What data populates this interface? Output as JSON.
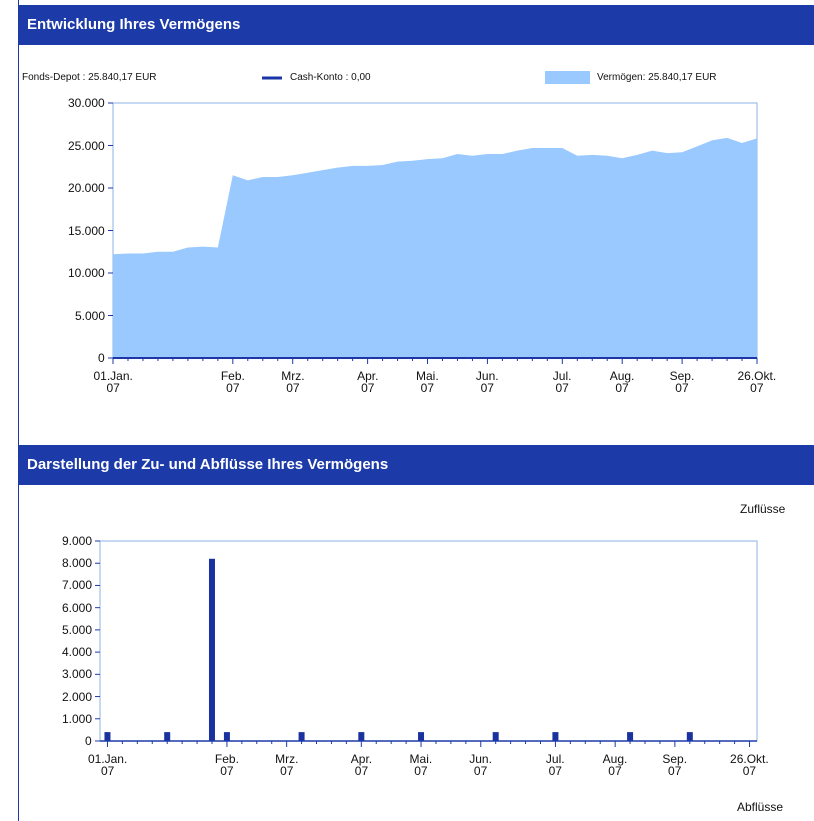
{
  "chart_data": [
    {
      "type": "area",
      "title": "Entwicklung Ihres Vermögens",
      "legend_text": "Fonds-Depot : 25.840,17 EUR",
      "categories": [
        "01.Jan.\n07",
        null,
        null,
        null,
        null,
        null,
        null,
        null,
        "Feb.\n07",
        null,
        null,
        null,
        "Mrz.\n07",
        null,
        null,
        null,
        null,
        "Apr.\n07",
        null,
        null,
        null,
        "Mai.\n07",
        null,
        null,
        null,
        "Jun.\n07",
        null,
        null,
        null,
        null,
        "Jul.\n07",
        null,
        null,
        null,
        "Aug.\n07",
        null,
        null,
        null,
        "Sep.\n07",
        null,
        null,
        null,
        null,
        "26.Okt.\n07"
      ],
      "series": [
        {
          "name": "Cash-Konto : 0,00",
          "type": "line",
          "color": "#1a35a8",
          "values": [
            0,
            0,
            0,
            0,
            0,
            0,
            0,
            0,
            0,
            0,
            0,
            0,
            0,
            0,
            0,
            0,
            0,
            0,
            0,
            0,
            0,
            0,
            0,
            0,
            0,
            0,
            0,
            0,
            0,
            0,
            0,
            0,
            0,
            0,
            0,
            0,
            0,
            0,
            0,
            0,
            0,
            0,
            0,
            0
          ]
        },
        {
          "name": "Vermögen: 25.840,17 EUR",
          "type": "area",
          "color": "#99c9ff",
          "values": [
            12200,
            12300,
            12300,
            12500,
            12500,
            13000,
            13100,
            13000,
            21500,
            20900,
            21300,
            21300,
            21500,
            21800,
            22100,
            22400,
            22600,
            22600,
            22700,
            23100,
            23200,
            23400,
            23500,
            24000,
            23800,
            24000,
            24000,
            24400,
            24700,
            24700,
            24700,
            23800,
            23900,
            23800,
            23500,
            23900,
            24400,
            24100,
            24200,
            24900,
            25600,
            25900,
            25300,
            25840
          ]
        }
      ],
      "ylim": [
        0,
        30000
      ],
      "yticks": [
        0,
        {
          "value": 5000,
          "label": "5.000"
        },
        {
          "value": 10000,
          "label": "10.000"
        },
        {
          "value": 15000,
          "label": "15.000"
        },
        {
          "value": 20000,
          "label": "20.000"
        },
        {
          "value": 25000,
          "label": "25.000"
        },
        {
          "value": 30000,
          "label": "30.000"
        }
      ]
    },
    {
      "type": "bar",
      "title": "Darstellung der Zu- und Abflüsse Ihres Vermögens",
      "top_label": "Zuflüsse",
      "bottom_label": "Abflüsse",
      "color": "#1a32a0",
      "categories": [
        "01.Jan.\n07",
        null,
        null,
        null,
        null,
        null,
        null,
        null,
        "Feb.\n07",
        null,
        null,
        null,
        "Mrz.\n07",
        null,
        null,
        null,
        null,
        "Apr.\n07",
        null,
        null,
        null,
        "Mai.\n07",
        null,
        null,
        null,
        "Jun.\n07",
        null,
        null,
        null,
        null,
        "Jul.\n07",
        null,
        null,
        null,
        "Aug.\n07",
        null,
        null,
        null,
        "Sep.\n07",
        null,
        null,
        null,
        null,
        "26.Okt.\n07"
      ],
      "values": [
        400,
        0,
        0,
        0,
        400,
        0,
        0,
        8200,
        400,
        0,
        0,
        0,
        0,
        400,
        0,
        0,
        0,
        400,
        0,
        0,
        0,
        400,
        0,
        0,
        0,
        0,
        400,
        0,
        0,
        0,
        400,
        0,
        0,
        0,
        0,
        400,
        0,
        0,
        0,
        400,
        0,
        0,
        0,
        0
      ],
      "ylim": [
        0,
        9000
      ],
      "yticks": [
        0,
        {
          "value": 1000,
          "label": "1.000"
        },
        {
          "value": 2000,
          "label": "2.000"
        },
        {
          "value": 3000,
          "label": "3.000"
        },
        {
          "value": 4000,
          "label": "4.000"
        },
        {
          "value": 5000,
          "label": "5.000"
        },
        {
          "value": 6000,
          "label": "6.000"
        },
        {
          "value": 7000,
          "label": "7.000"
        },
        {
          "value": 8000,
          "label": "8.000"
        },
        {
          "value": 9000,
          "label": "9.000"
        }
      ]
    }
  ]
}
